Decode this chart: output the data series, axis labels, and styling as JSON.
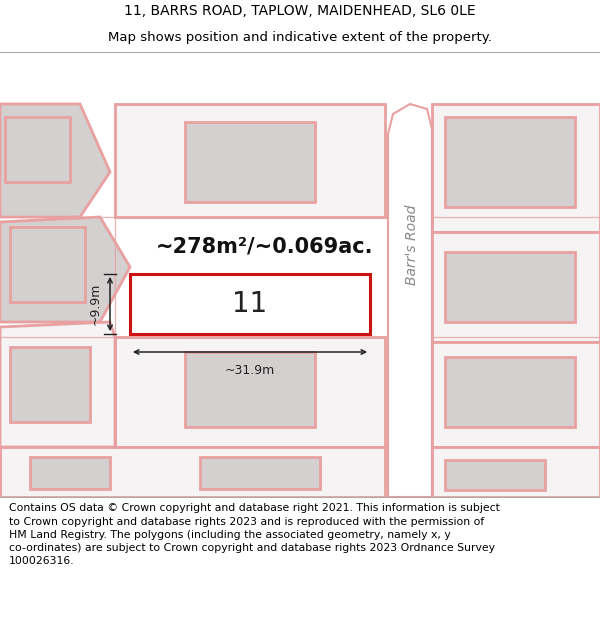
{
  "title_line1": "11, BARRS ROAD, TAPLOW, MAIDENHEAD, SL6 0LE",
  "title_line2": "Map shows position and indicative extent of the property.",
  "footer_text_line1": "Contains OS data © Crown copyright and database right 2021. This information is subject",
  "footer_text_line2": "to Crown copyright and database rights 2023 and is reproduced with the permission of",
  "footer_text_line3": "HM Land Registry. The polygons (including the associated geometry, namely x, y",
  "footer_text_line4": "co-ordinates) are subject to Crown copyright and database rights 2023 Ordnance Survey",
  "footer_text_line5": "100026316.",
  "area_text": "~278m²/~0.069ac.",
  "property_number": "11",
  "dim_width": "~31.9m",
  "dim_height": "~9.9m",
  "road_label": "Barr's Road",
  "bg_white": "#ffffff",
  "map_bg": "#f5f3f3",
  "building_fill": "#d4d0d0",
  "building_edge": "#e8a0a0",
  "road_fill": "#ffffff",
  "parcel_edge": "#e8a0a0",
  "property_fill": "#ffffff",
  "property_edge": "#cc1111",
  "title_fs": 10,
  "subtitle_fs": 9.5,
  "footer_fs": 7.8,
  "area_fs": 15,
  "propnum_fs": 20,
  "dim_fs": 9,
  "road_label_fs": 10
}
